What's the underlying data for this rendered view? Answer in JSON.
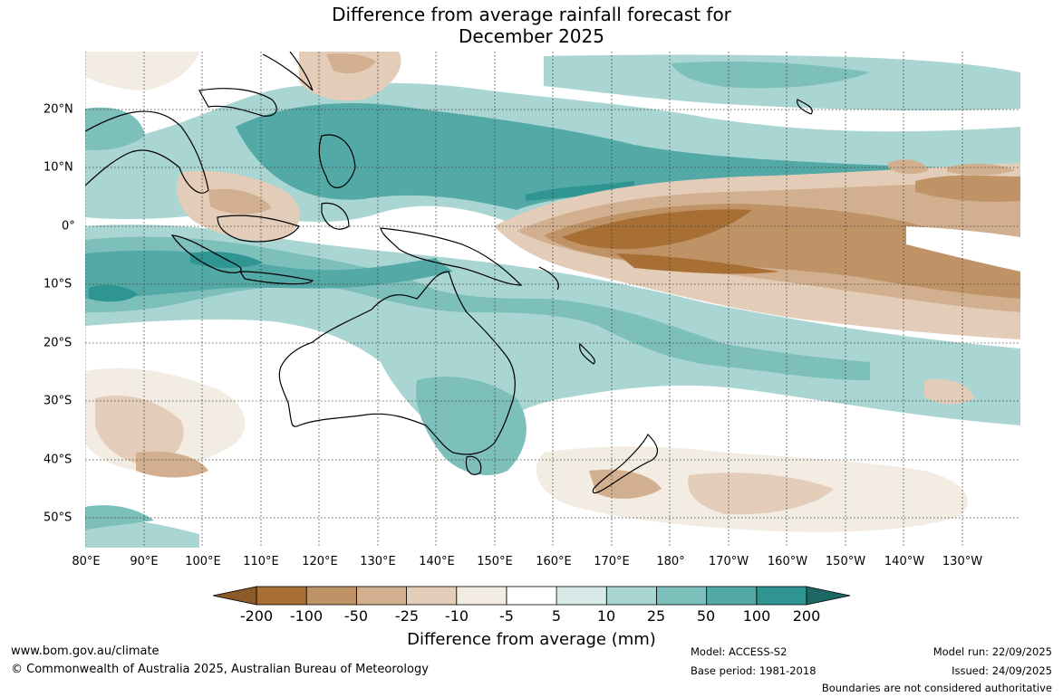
{
  "title": {
    "line1": "Difference from average rainfall forecast for",
    "line2": "December 2025"
  },
  "lon_ticks": [
    "80°E",
    "90°E",
    "100°E",
    "110°E",
    "120°E",
    "130°E",
    "140°E",
    "150°E",
    "160°E",
    "170°E",
    "180°",
    "170°W",
    "160°W",
    "150°W",
    "140°W",
    "130°W"
  ],
  "lat_ticks": [
    "20°N",
    "10°N",
    "0°",
    "10°S",
    "20°S",
    "30°S",
    "40°S",
    "50°S"
  ],
  "colorbar": {
    "labels": [
      "-200",
      "-100",
      "-50",
      "-25",
      "-10",
      "-5",
      "5",
      "10",
      "25",
      "50",
      "100",
      "200"
    ],
    "colors": [
      "#a86f35",
      "#bf9366",
      "#d2b08f",
      "#e3cdb8",
      "#f3ece3",
      "#ffffff",
      "#d7eae8",
      "#a9d5d3",
      "#7cbfbb",
      "#52a9a6",
      "#2e9592",
      "#227a77"
    ],
    "title": "Difference from average (mm)"
  },
  "footer": {
    "url": "www.bom.gov.au/climate",
    "copyright": "© Commonwealth of Australia 2025, Australian Bureau of Meteorology",
    "model": "Model: ACCESS-S2",
    "base_period": "Base period: 1981-2018",
    "model_run": "Model run: 22/09/2025",
    "issued": "Issued: 24/09/2025",
    "disclaimer": "Boundaries are not considered authoritative"
  }
}
